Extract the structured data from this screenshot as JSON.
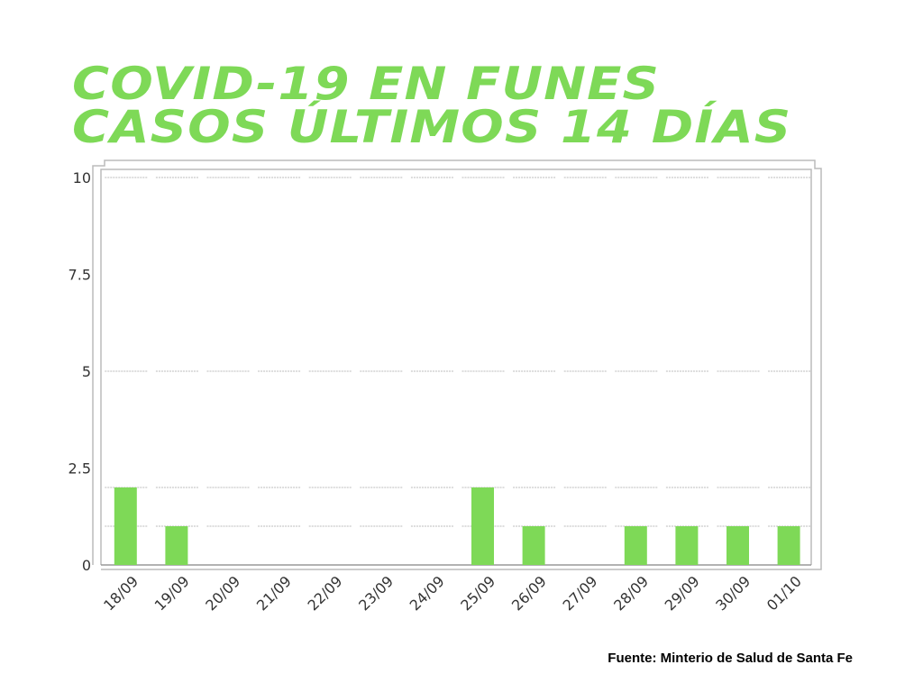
{
  "title_line1": "COVID-19 EN FUNES",
  "title_line2": "CASOS ÚLTIMOS 14 DÍAS",
  "source": "Fuente: Minterio de Salud de Santa Fe",
  "colors": {
    "bar": "#7ed957",
    "title": "#7ed957"
  },
  "chart_data": {
    "type": "bar",
    "title": "COVID-19 EN FUNES CASOS ÚLTIMOS 14 DÍAS",
    "categories": [
      "18/09",
      "19/09",
      "20/09",
      "21/09",
      "22/09",
      "23/09",
      "24/09",
      "25/09",
      "26/09",
      "27/09",
      "28/09",
      "29/09",
      "30/09",
      "01/10"
    ],
    "values": [
      2,
      1,
      0,
      0,
      0,
      0,
      0,
      2,
      1,
      0,
      1,
      1,
      1,
      1
    ],
    "yticks": [
      "0",
      "2.5",
      "5",
      "7.5",
      "10"
    ],
    "ylim": [
      0,
      10
    ],
    "xlabel": "",
    "ylabel": "",
    "grid": true
  }
}
